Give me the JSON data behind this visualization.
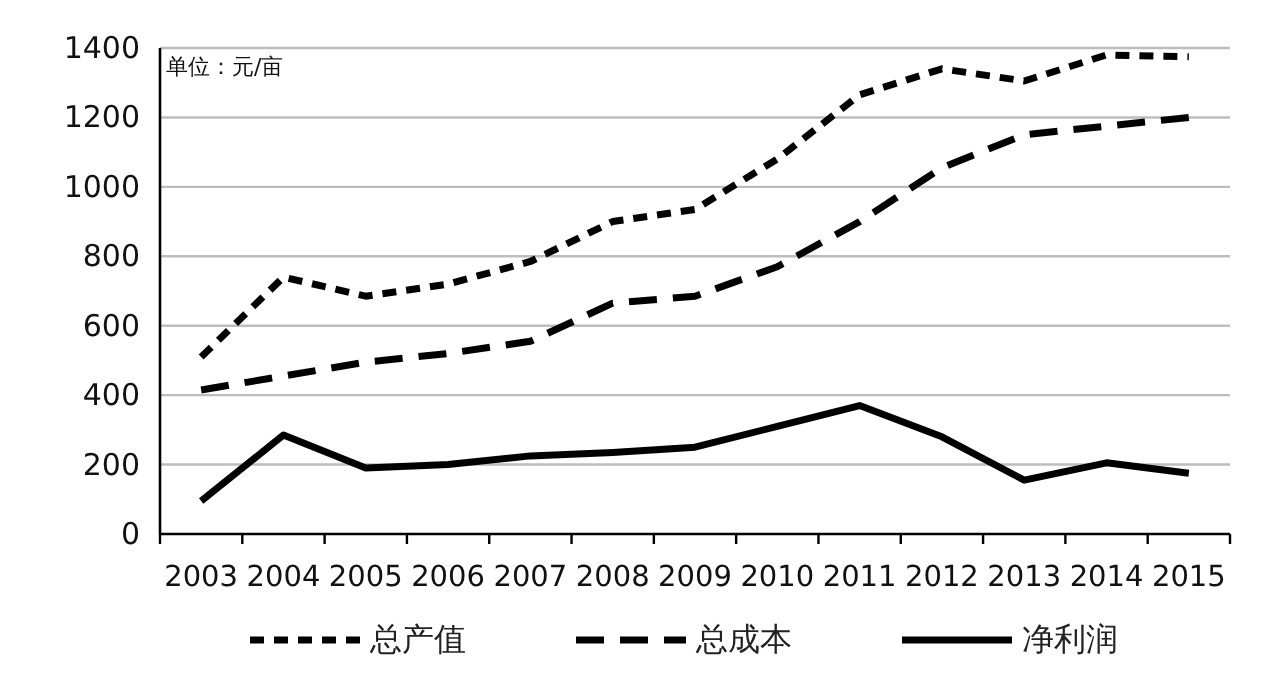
{
  "chart_data": {
    "type": "line",
    "categories": [
      "2003",
      "2004",
      "2005",
      "2006",
      "2007",
      "2008",
      "2009",
      "2010",
      "2011",
      "2012",
      "2013",
      "2014",
      "2015"
    ],
    "series": [
      {
        "name": "总产值",
        "color": "#000000",
        "line_style": "dotted",
        "values": [
          510,
          740,
          685,
          720,
          785,
          900,
          935,
          1080,
          1265,
          1340,
          1305,
          1380,
          1375
        ]
      },
      {
        "name": "总成本",
        "color": "#000000",
        "line_style": "dashed",
        "values": [
          415,
          455,
          495,
          520,
          555,
          665,
          685,
          770,
          900,
          1055,
          1150,
          1175,
          1200
        ]
      },
      {
        "name": "净利润",
        "color": "#000000",
        "line_style": "solid",
        "values": [
          95,
          285,
          190,
          200,
          225,
          235,
          250,
          310,
          370,
          280,
          155,
          205,
          175
        ]
      }
    ],
    "ylim": [
      0,
      1400
    ],
    "yticks": [
      0,
      200,
      400,
      600,
      800,
      1000,
      1200,
      1400
    ],
    "grid": "y",
    "legend": "bottom",
    "marker": "none",
    "annotations": [
      "单位：元/亩"
    ]
  }
}
